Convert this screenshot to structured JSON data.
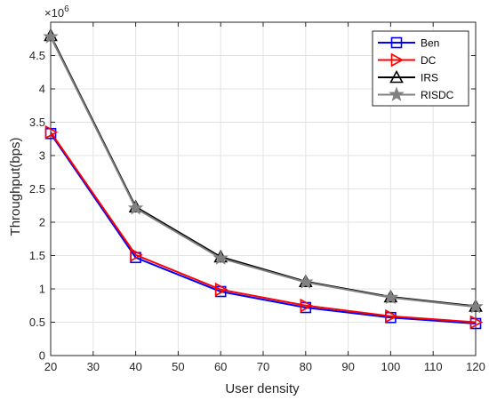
{
  "chart_data": {
    "type": "line",
    "x": [
      20,
      40,
      60,
      80,
      100,
      120
    ],
    "xlabel": "User density",
    "ylabel": "Throughput(bps)",
    "y_exponent_base": "×10",
    "y_exponent_power": "6",
    "xlim": [
      20,
      120
    ],
    "ylim": [
      0,
      5000000
    ],
    "x_ticks": [
      20,
      30,
      40,
      50,
      60,
      70,
      80,
      90,
      100,
      110,
      120
    ],
    "x_tick_labels": [
      "20",
      "30",
      "40",
      "50",
      "60",
      "70",
      "80",
      "90",
      "100",
      "110",
      "120"
    ],
    "y_ticks": [
      0,
      500000,
      1000000,
      1500000,
      2000000,
      2500000,
      3000000,
      3500000,
      4000000,
      4500000
    ],
    "y_tick_labels": [
      "0",
      "0.5",
      "1",
      "1.5",
      "2",
      "2.5",
      "3",
      "3.5",
      "4",
      "4.5"
    ],
    "grid": true,
    "legend_position": "top-right",
    "series": [
      {
        "name": "Ben",
        "color": "#0000ff",
        "marker": "square",
        "values": [
          3330000,
          1470000,
          960000,
          720000,
          570000,
          480000
        ]
      },
      {
        "name": "DC",
        "color": "#ff0000",
        "marker": "triangle-right",
        "values": [
          3350000,
          1510000,
          990000,
          750000,
          590000,
          500000
        ]
      },
      {
        "name": "IRS",
        "color": "#000000",
        "marker": "triangle-up",
        "values": [
          4800000,
          2230000,
          1480000,
          1110000,
          880000,
          740000
        ]
      },
      {
        "name": "RISDC",
        "color": "#808080",
        "marker": "star",
        "values": [
          4780000,
          2210000,
          1460000,
          1100000,
          870000,
          730000
        ]
      }
    ]
  }
}
